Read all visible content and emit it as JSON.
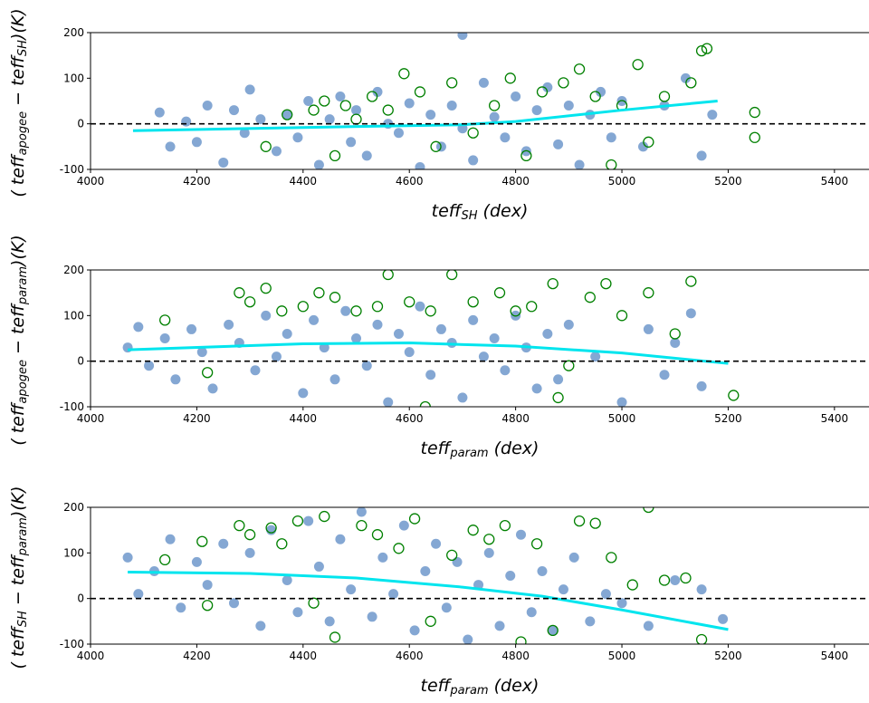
{
  "chart_data": [
    {
      "type": "scatter",
      "ylabel": [
        "( teff",
        "apogee",
        " − teff",
        "SH",
        ")(K)"
      ],
      "xlabel": [
        "teff",
        "SH",
        " (dex)"
      ],
      "xlim": [
        4000,
        5465
      ],
      "ylim": [
        -100,
        200
      ],
      "xticks": [
        4000,
        4200,
        4400,
        4600,
        4800,
        5000,
        5200,
        5400
      ],
      "yticks": [
        -100,
        0,
        100,
        200
      ],
      "hline": {
        "value": 0,
        "color": "#000000",
        "dashed": true
      },
      "series": [
        {
          "style": "filled",
          "color": "#5b8ac4",
          "x": [
            4130,
            4150,
            4180,
            4200,
            4220,
            4250,
            4270,
            4290,
            4300,
            4320,
            4350,
            4370,
            4390,
            4410,
            4430,
            4450,
            4470,
            4490,
            4500,
            4520,
            4540,
            4560,
            4580,
            4600,
            4620,
            4640,
            4660,
            4680,
            4700,
            4720,
            4740,
            4760,
            4780,
            4800,
            4820,
            4840,
            4860,
            4880,
            4900,
            4920,
            4940,
            4960,
            4980,
            5000,
            5040,
            5080,
            5120,
            5150,
            5170,
            4700
          ],
          "values": [
            25,
            -50,
            5,
            -40,
            40,
            -85,
            30,
            -20,
            75,
            10,
            -60,
            20,
            -30,
            50,
            -90,
            10,
            60,
            -40,
            30,
            -70,
            70,
            0,
            -20,
            45,
            -95,
            20,
            -50,
            40,
            -10,
            -80,
            90,
            15,
            -30,
            60,
            -60,
            30,
            80,
            -45,
            40,
            -90,
            20,
            70,
            -30,
            50,
            -50,
            40,
            100,
            -70,
            20,
            195
          ]
        },
        {
          "style": "hollow",
          "color": "#008000",
          "x": [
            4330,
            4370,
            4420,
            4440,
            4460,
            4480,
            4500,
            4530,
            4560,
            4590,
            4620,
            4650,
            4680,
            4720,
            4760,
            4790,
            4820,
            4850,
            4890,
            4920,
            4950,
            4980,
            5000,
            5030,
            5050,
            5080,
            5130,
            5150,
            5160,
            5250,
            5250
          ],
          "values": [
            -50,
            20,
            30,
            50,
            -70,
            40,
            10,
            60,
            30,
            110,
            70,
            -50,
            90,
            -20,
            40,
            100,
            -70,
            70,
            90,
            120,
            60,
            -90,
            40,
            130,
            -40,
            60,
            90,
            160,
            165,
            25,
            -30
          ]
        },
        {
          "style": "line",
          "color": "#00e5ee",
          "x": [
            4080,
            4400,
            4700,
            4800,
            5000,
            5180
          ],
          "values": [
            -15,
            -8,
            -2,
            5,
            30,
            50
          ]
        }
      ]
    },
    {
      "type": "scatter",
      "ylabel": [
        "( teff",
        "apogee",
        " − teff",
        "param",
        ")(K)"
      ],
      "xlabel": [
        "teff",
        "param",
        " (dex)"
      ],
      "xlim": [
        4000,
        5465
      ],
      "ylim": [
        -100,
        200
      ],
      "xticks": [
        4000,
        4200,
        4400,
        4600,
        4800,
        5000,
        5200,
        5400
      ],
      "yticks": [
        -100,
        0,
        100,
        200
      ],
      "hline": {
        "value": 0,
        "color": "#000000",
        "dashed": true
      },
      "series": [
        {
          "style": "filled",
          "color": "#5b8ac4",
          "x": [
            4070,
            4090,
            4110,
            4140,
            4160,
            4190,
            4210,
            4230,
            4260,
            4280,
            4310,
            4330,
            4350,
            4370,
            4400,
            4420,
            4440,
            4460,
            4480,
            4500,
            4520,
            4540,
            4560,
            4580,
            4600,
            4620,
            4640,
            4660,
            4680,
            4700,
            4720,
            4740,
            4760,
            4780,
            4800,
            4820,
            4840,
            4860,
            4880,
            4900,
            4950,
            5000,
            5050,
            5080,
            5100,
            5130,
            5150
          ],
          "values": [
            30,
            75,
            -10,
            50,
            -40,
            70,
            20,
            -60,
            80,
            40,
            -20,
            100,
            10,
            60,
            -70,
            90,
            30,
            -40,
            110,
            50,
            -10,
            80,
            -90,
            60,
            20,
            120,
            -30,
            70,
            40,
            -80,
            90,
            10,
            50,
            -20,
            100,
            30,
            -60,
            60,
            -40,
            80,
            10,
            -90,
            70,
            -30,
            40,
            105,
            -55
          ]
        },
        {
          "style": "hollow",
          "color": "#008000",
          "x": [
            4140,
            4220,
            4280,
            4300,
            4330,
            4360,
            4400,
            4430,
            4460,
            4500,
            4540,
            4560,
            4600,
            4640,
            4680,
            4720,
            4770,
            4800,
            4830,
            4870,
            4900,
            4940,
            4970,
            5000,
            5050,
            5100,
            5130,
            5210,
            4630,
            4880
          ],
          "values": [
            90,
            -25,
            150,
            130,
            160,
            110,
            120,
            150,
            140,
            110,
            120,
            190,
            130,
            110,
            190,
            130,
            150,
            110,
            120,
            170,
            -10,
            140,
            170,
            100,
            150,
            60,
            175,
            -75,
            -100,
            -80
          ]
        },
        {
          "style": "line",
          "color": "#00e5ee",
          "x": [
            4070,
            4400,
            4600,
            4800,
            5000,
            5200
          ],
          "values": [
            25,
            38,
            40,
            33,
            18,
            -5
          ]
        }
      ]
    },
    {
      "type": "scatter",
      "ylabel": [
        "( teff",
        "SH",
        " − teff",
        "param",
        ")(K)"
      ],
      "xlabel": [
        "teff",
        "param",
        " (dex)"
      ],
      "xlim": [
        4000,
        5465
      ],
      "ylim": [
        -100,
        200
      ],
      "xticks": [
        4000,
        4200,
        4400,
        4600,
        4800,
        5000,
        5200,
        5400
      ],
      "yticks": [
        -100,
        0,
        100,
        200
      ],
      "hline": {
        "value": 0,
        "color": "#000000",
        "dashed": true
      },
      "series": [
        {
          "style": "filled",
          "color": "#5b8ac4",
          "x": [
            4070,
            4090,
            4120,
            4150,
            4170,
            4200,
            4220,
            4250,
            4270,
            4300,
            4320,
            4340,
            4370,
            4390,
            4410,
            4430,
            4450,
            4470,
            4490,
            4510,
            4530,
            4550,
            4570,
            4590,
            4610,
            4630,
            4650,
            4670,
            4690,
            4710,
            4730,
            4750,
            4770,
            4790,
            4810,
            4830,
            4850,
            4870,
            4890,
            4910,
            4940,
            4970,
            5000,
            5050,
            5100,
            5150,
            5190
          ],
          "values": [
            90,
            10,
            60,
            130,
            -20,
            80,
            30,
            120,
            -10,
            100,
            -60,
            150,
            40,
            -30,
            170,
            70,
            -50,
            130,
            20,
            190,
            -40,
            90,
            10,
            160,
            -70,
            60,
            120,
            -20,
            80,
            -90,
            30,
            100,
            -60,
            50,
            140,
            -30,
            60,
            -70,
            20,
            90,
            -50,
            10,
            -10,
            -60,
            40,
            20,
            -45
          ]
        },
        {
          "style": "hollow",
          "color": "#008000",
          "x": [
            4140,
            4210,
            4220,
            4280,
            4300,
            4340,
            4360,
            4390,
            4420,
            4440,
            4460,
            4510,
            4540,
            4580,
            4610,
            4640,
            4680,
            4720,
            4750,
            4780,
            4810,
            4840,
            4870,
            4920,
            4950,
            4980,
            5020,
            5050,
            5080,
            5120,
            5150
          ],
          "values": [
            85,
            125,
            -15,
            160,
            140,
            155,
            120,
            170,
            -10,
            180,
            -85,
            160,
            140,
            110,
            175,
            -50,
            95,
            150,
            130,
            160,
            -95,
            120,
            -70,
            170,
            165,
            90,
            30,
            200,
            40,
            45,
            -90
          ]
        },
        {
          "style": "line",
          "color": "#00e5ee",
          "x": [
            4070,
            4300,
            4500,
            4700,
            4850,
            5000,
            5200
          ],
          "values": [
            58,
            55,
            45,
            25,
            5,
            -25,
            -68
          ]
        }
      ]
    }
  ]
}
